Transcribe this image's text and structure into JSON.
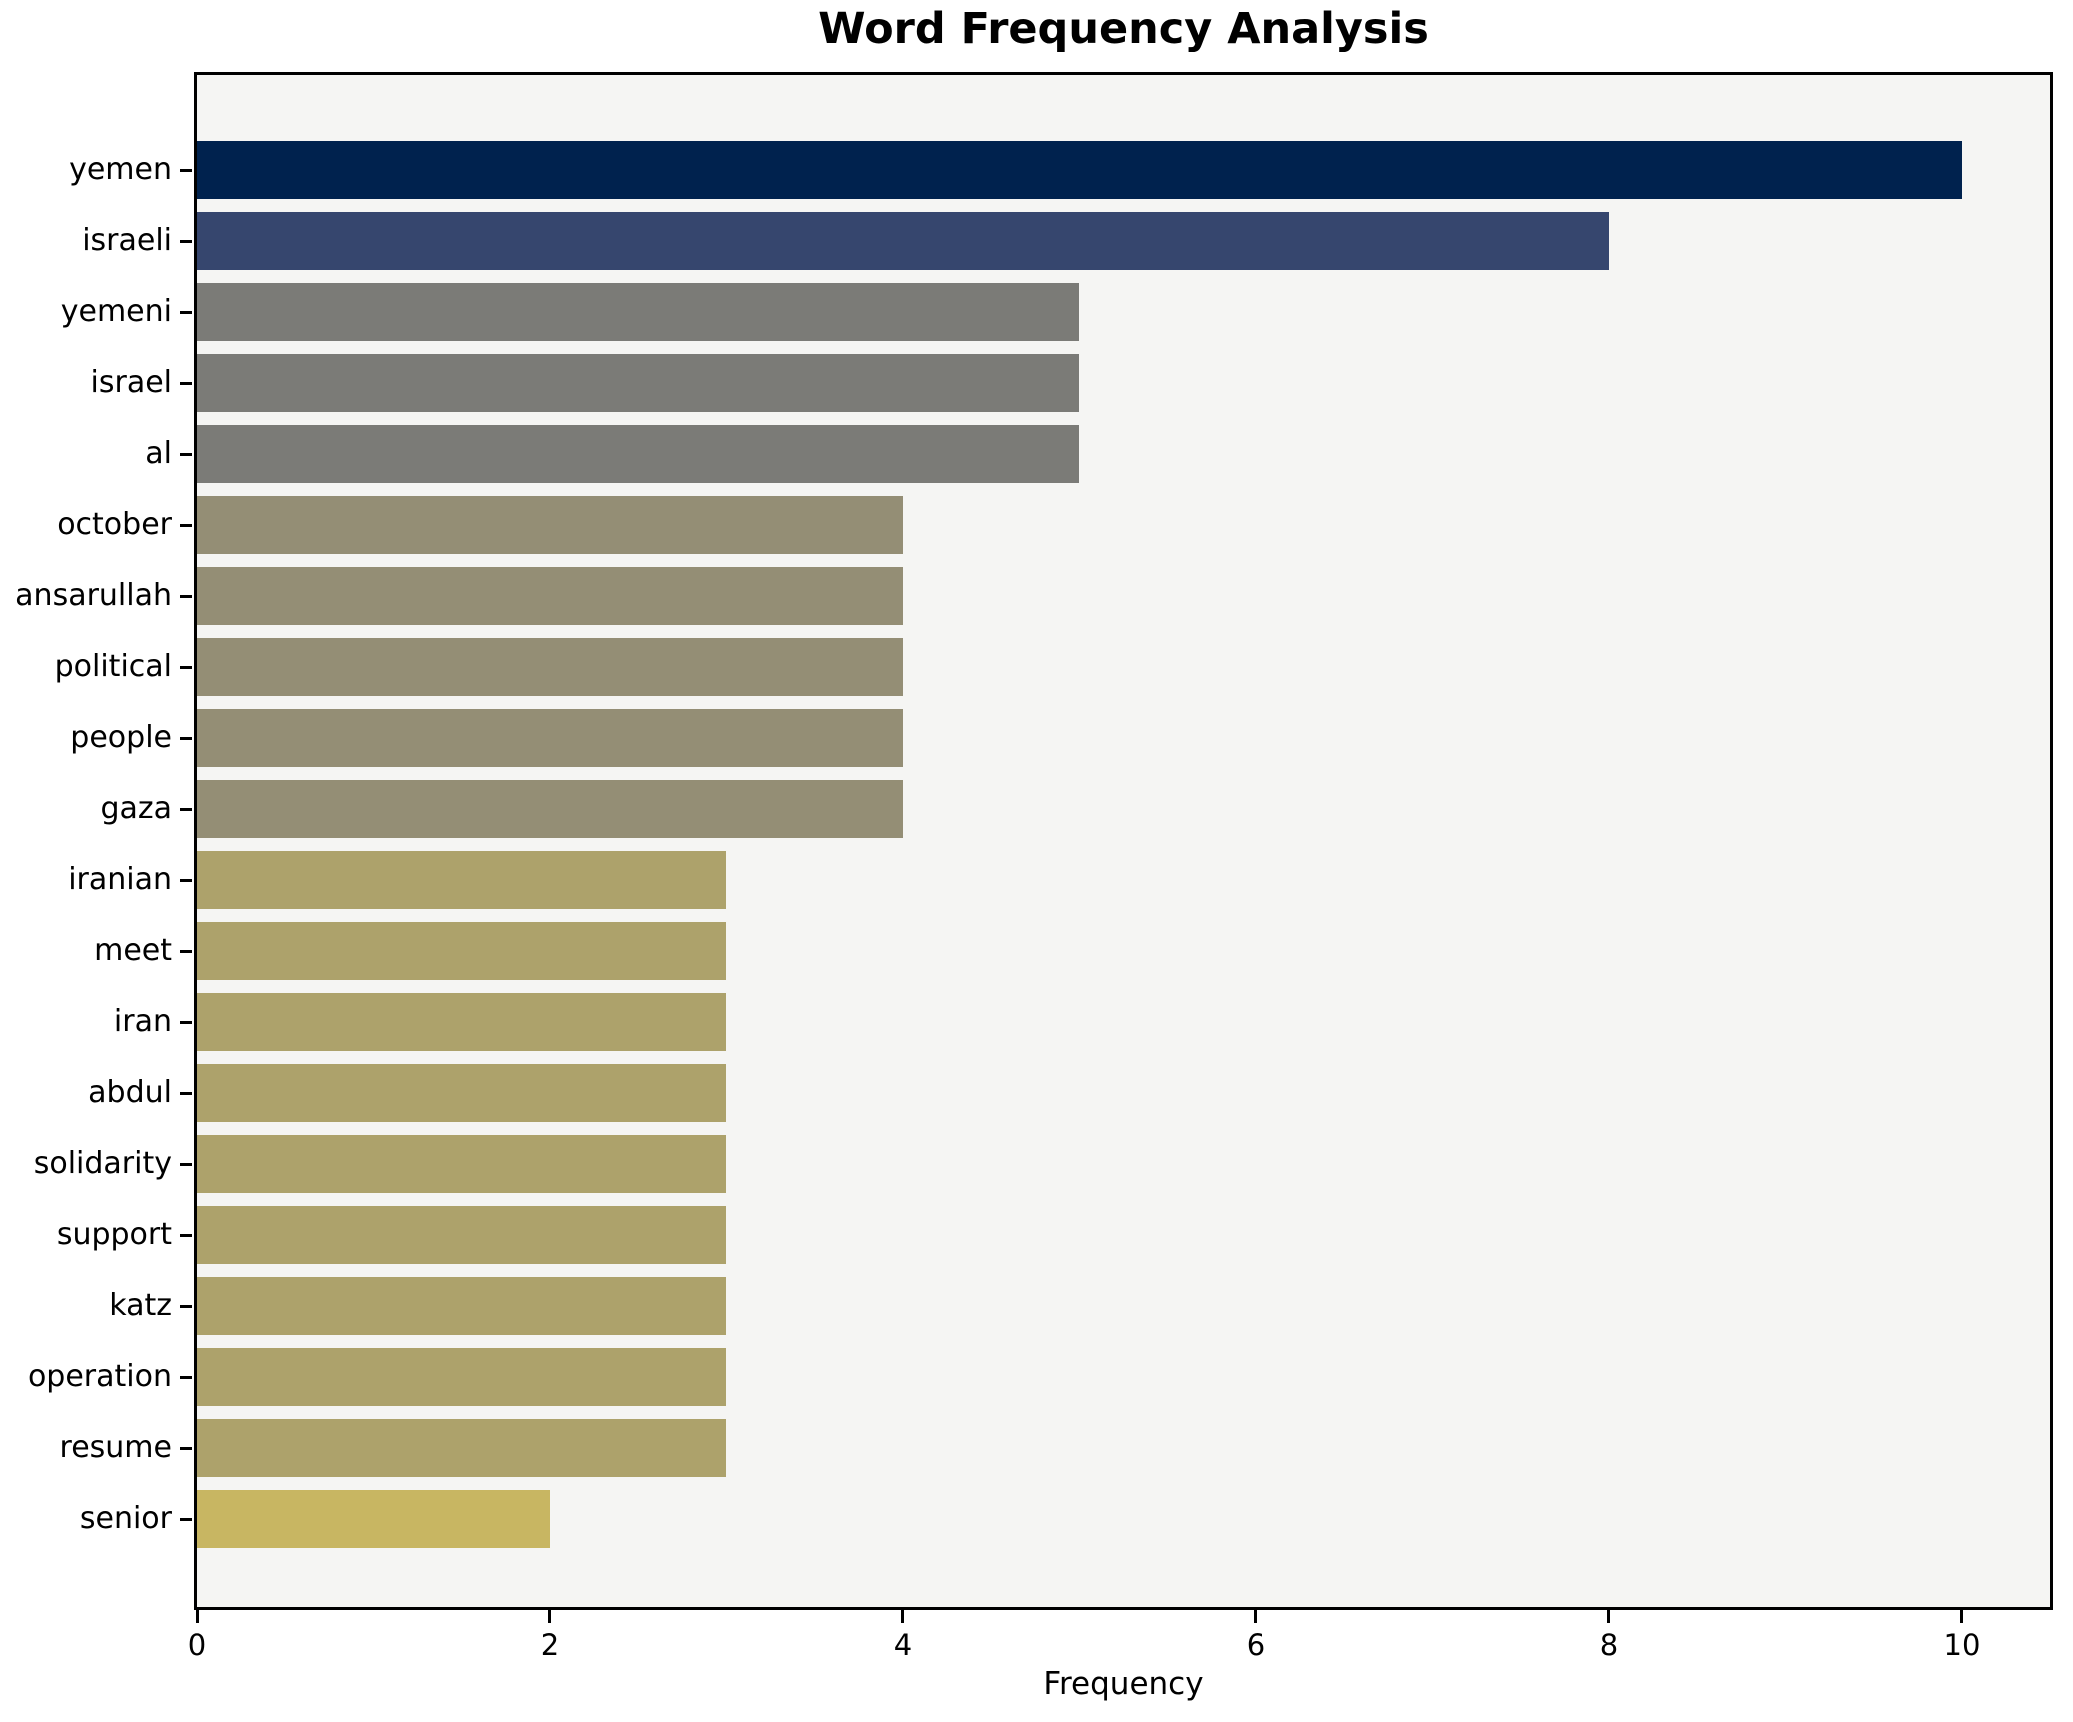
{
  "chart_data": {
    "type": "bar",
    "orientation": "horizontal",
    "title": "Word Frequency Analysis",
    "xlabel": "Frequency",
    "ylabel": "",
    "categories": [
      "yemen",
      "israeli",
      "yemeni",
      "israel",
      "al",
      "october",
      "ansarullah",
      "political",
      "people",
      "gaza",
      "iranian",
      "meet",
      "iran",
      "abdul",
      "solidarity",
      "support",
      "katz",
      "operation",
      "resume",
      "senior"
    ],
    "values": [
      10,
      8,
      5,
      5,
      5,
      4,
      4,
      4,
      4,
      4,
      3,
      3,
      3,
      3,
      3,
      3,
      3,
      3,
      3,
      2
    ],
    "bar_colors": [
      "#00224e",
      "#36466e",
      "#7b7b77",
      "#7b7b77",
      "#7b7b77",
      "#948e75",
      "#948e75",
      "#948e75",
      "#948e75",
      "#948e75",
      "#ada26b",
      "#ada26b",
      "#ada26b",
      "#ada26b",
      "#ada26b",
      "#ada26b",
      "#ada26b",
      "#ada26b",
      "#ada26b",
      "#c8b662"
    ],
    "xticks": [
      0,
      2,
      4,
      6,
      8,
      10
    ],
    "xlim": [
      0,
      10.5
    ],
    "grid": false,
    "legend": "none",
    "plot_background": "#f5f5f3",
    "figure_background": "#ffffff",
    "spine_color": "#000000"
  }
}
